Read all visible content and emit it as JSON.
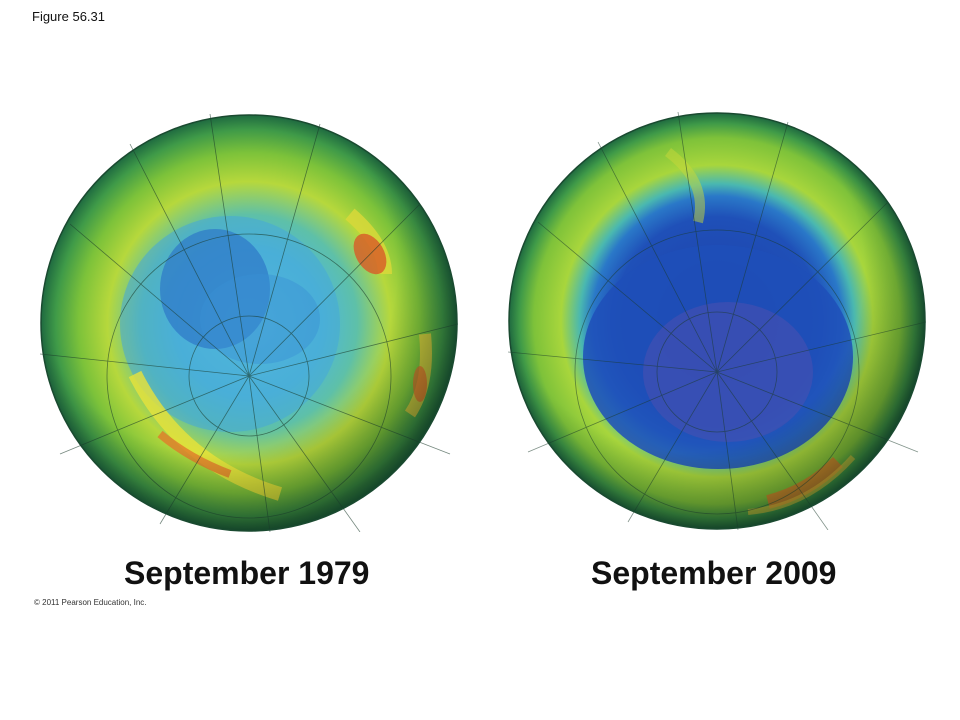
{
  "figure_label": "Figure 56.31",
  "panels": [
    {
      "caption": "September 1979"
    },
    {
      "caption": "September 2009"
    }
  ],
  "copyright": "© 2011 Pearson Education, Inc."
}
